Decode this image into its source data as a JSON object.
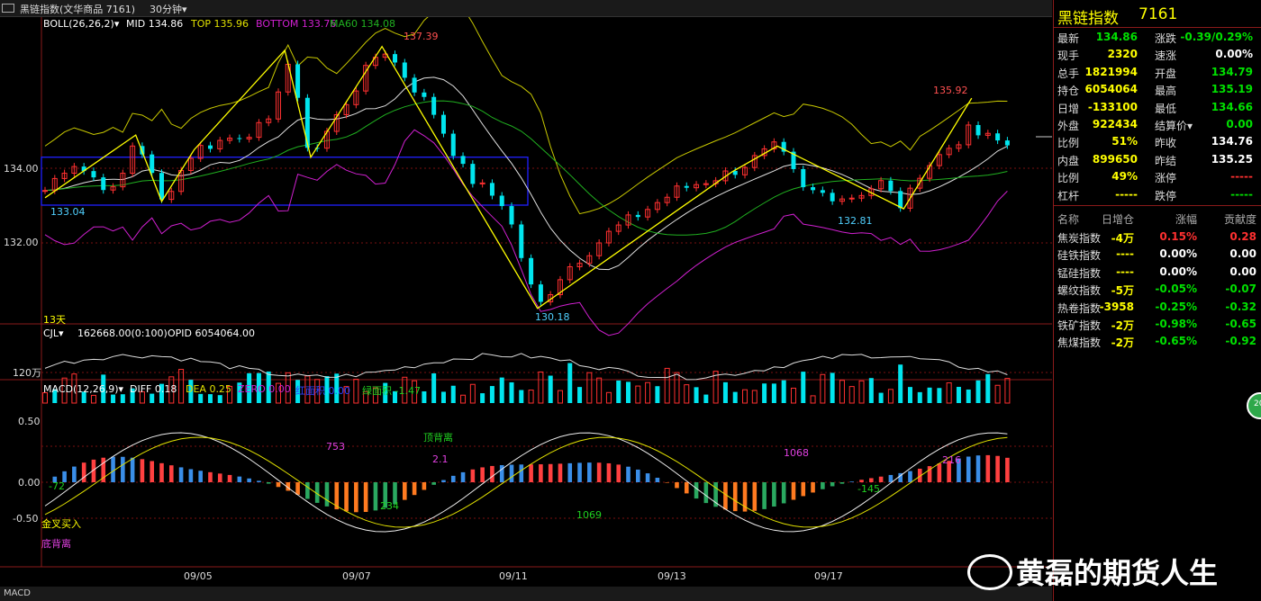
{
  "window": {
    "title": "黑链指数(文华商品  7161)",
    "period": "30分钟▾",
    "menu_icon": "window-menu-icon"
  },
  "price_panel": {
    "indicator_name": "BOLL(26,26,2)▾",
    "mid": "MID 134.86",
    "top": "TOP 135.96",
    "bottom": "BOTTOM 133.76",
    "ma60": "MA60 134.08",
    "y_ticks": [
      "134.00",
      "132.00"
    ],
    "days_label": "13天",
    "annotations": [
      "137.39",
      "133.04",
      "130.18",
      "135.92",
      "132.81"
    ],
    "colors": {
      "up": "#ff3030",
      "down": "#00e5ee",
      "boll_mid": "#e0e0e0",
      "boll_top": "#c8c800",
      "boll_bottom": "#d020d0",
      "ma60": "#20b020",
      "trend": "#ffff00",
      "box": "#2020ff"
    }
  },
  "volume_panel": {
    "header_cjl": "CJL▾",
    "header_vol": "162668.00(0:100)",
    "header_opid": "OPID 6054064.00",
    "y_tick": "120万"
  },
  "macd_panel": {
    "header_name": "MACD(12,26,9)▾",
    "diff": "DIFF 0.18",
    "dea": "DEA 0.25",
    "zero": "ZERO 0.00",
    "red_area": "红面积 0.00",
    "green_area": "绿面积 -1.47",
    "y_ticks": [
      "0.50",
      "0.00",
      "-0.50"
    ],
    "annotations": [
      "-72",
      "753",
      "顶背离",
      "2.1",
      "234",
      "1069",
      "1068",
      "-145",
      "216",
      "金叉买入",
      "底背离"
    ]
  },
  "x_axis": [
    "09/05",
    "09/07",
    "09/11",
    "09/13",
    "09/17"
  ],
  "bottom_tab": "MACD",
  "quote": {
    "name": "黑链指数",
    "code": "7161",
    "rows": [
      {
        "k1": "最新",
        "v1": "134.86",
        "c1": "#00e000",
        "k2": "涨跌",
        "v2": "-0.39/0.29%",
        "c2": "#00e000"
      },
      {
        "k1": "现手",
        "v1": "2320",
        "c1": "#ffff00",
        "k2": "速涨",
        "v2": "0.00%",
        "c2": "#ffffff"
      },
      {
        "k1": "总手",
        "v1": "1821994",
        "c1": "#ffff00",
        "k2": "开盘",
        "v2": "134.79",
        "c2": "#00e000"
      },
      {
        "k1": "持仓",
        "v1": "6054064",
        "c1": "#ffff00",
        "k2": "最高",
        "v2": "135.19",
        "c2": "#00e000"
      },
      {
        "k1": "日增",
        "v1": "-133100",
        "c1": "#ffff00",
        "k2": "最低",
        "v2": "134.66",
        "c2": "#00e000"
      },
      {
        "k1": "外盘",
        "v1": "922434",
        "c1": "#ffff00",
        "k2": "结算价▾",
        "v2": "0.00",
        "c2": "#00e000"
      },
      {
        "k1": "比例",
        "v1": "51%",
        "c1": "#ffff00",
        "k2": "昨收",
        "v2": "134.76",
        "c2": "#ffffff"
      },
      {
        "k1": "内盘",
        "v1": "899650",
        "c1": "#ffff00",
        "k2": "昨结",
        "v2": "135.25",
        "c2": "#ffffff"
      },
      {
        "k1": "比例",
        "v1": "49%",
        "c1": "#ffff00",
        "k2": "涨停",
        "v2": "-----",
        "c2": "#ff3030"
      },
      {
        "k1": "杠杆",
        "v1": "-----",
        "c1": "#ffff00",
        "k2": "跌停",
        "v2": "-----",
        "c2": "#00e000"
      }
    ],
    "table_headers": [
      "名称",
      "日增仓",
      "涨幅",
      "贡献度"
    ],
    "table_rows": [
      {
        "name": "焦炭指数",
        "inc": "-4万",
        "chg": "0.15%",
        "contrib": "0.28",
        "c": "#ff3030"
      },
      {
        "name": "硅铁指数",
        "inc": "----",
        "chg": "0.00%",
        "contrib": "0.00",
        "c": "#ffffff"
      },
      {
        "name": "锰硅指数",
        "inc": "----",
        "chg": "0.00%",
        "contrib": "0.00",
        "c": "#ffffff"
      },
      {
        "name": "螺纹指数",
        "inc": "-5万",
        "chg": "-0.05%",
        "contrib": "-0.07",
        "c": "#00e000"
      },
      {
        "name": "热卷指数",
        "inc": "-3958",
        "chg": "-0.25%",
        "contrib": "-0.32",
        "c": "#00e000"
      },
      {
        "name": "铁矿指数",
        "inc": "-2万",
        "chg": "-0.98%",
        "contrib": "-0.65",
        "c": "#00e000"
      },
      {
        "name": "焦煤指数",
        "inc": "-2万",
        "chg": "-0.65%",
        "contrib": "-0.92",
        "c": "#00e000"
      }
    ]
  },
  "watermark": "黄磊的期货人生",
  "side_badge": "20"
}
